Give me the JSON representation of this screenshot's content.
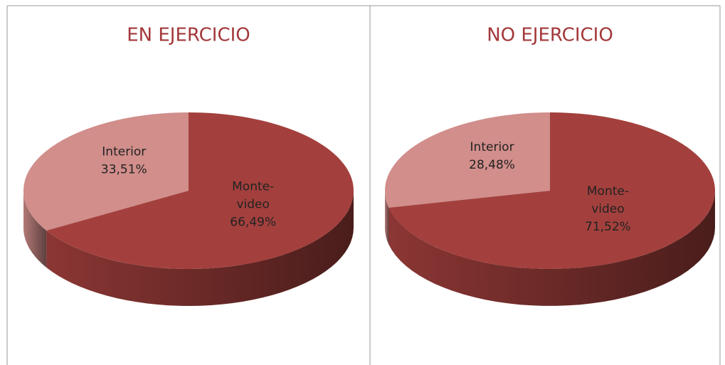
{
  "chart_data": [
    {
      "type": "pie",
      "title": "EN EJERCICIO",
      "categories": [
        "Interior",
        "Monte-video"
      ],
      "values": [
        33.51,
        66.49
      ],
      "value_labels": [
        "33,51%",
        "66,49%"
      ],
      "colors": [
        "#d18e8b",
        "#a3403d"
      ]
    },
    {
      "type": "pie",
      "title": "NO EJERCICIO",
      "categories": [
        "Interior",
        "Monte-video"
      ],
      "values": [
        28.48,
        71.52
      ],
      "value_labels": [
        "28,48%",
        "71,52%"
      ],
      "colors": [
        "#d18e8b",
        "#a3403d"
      ]
    }
  ]
}
